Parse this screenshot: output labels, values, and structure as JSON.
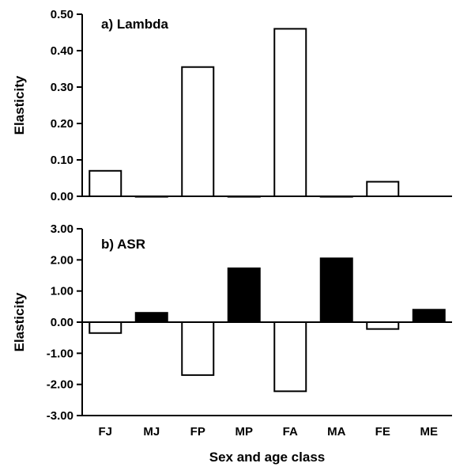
{
  "chart_data": [
    {
      "type": "bar",
      "title": "a) Lambda",
      "ylabel": "Elasticity",
      "xlabel": "",
      "categories": [
        "FJ",
        "MJ",
        "FP",
        "MP",
        "FA",
        "MA",
        "FE",
        "ME"
      ],
      "values": [
        0.07,
        0.0,
        0.355,
        0.0,
        0.46,
        0.0,
        0.04,
        null
      ],
      "ylim": [
        0,
        0.5
      ],
      "yticks": [
        0.0,
        0.1,
        0.2,
        0.3,
        0.4,
        0.5
      ],
      "ytick_labels": [
        "0.00",
        "0.10",
        "0.20",
        "0.30",
        "0.40",
        "0.50"
      ],
      "bar_fills": [
        "#ffffff",
        "#ffffff",
        "#ffffff",
        "#ffffff",
        "#ffffff",
        "#ffffff",
        "#ffffff",
        "#ffffff"
      ],
      "grid": false
    },
    {
      "type": "bar",
      "title": "b) ASR",
      "ylabel": "Elasticity",
      "xlabel": "Sex and age class",
      "categories": [
        "FJ",
        "MJ",
        "FP",
        "MP",
        "FA",
        "MA",
        "FE",
        "ME"
      ],
      "values": [
        -0.35,
        0.3,
        -1.7,
        1.73,
        -2.22,
        2.05,
        -0.22,
        0.4
      ],
      "ylim": [
        -3,
        3
      ],
      "yticks": [
        -3,
        -2,
        -1,
        0,
        1,
        2,
        3
      ],
      "ytick_labels": [
        "-3.00",
        "-2.00",
        "-1.00",
        "0.00",
        "1.00",
        "2.00",
        "3.00"
      ],
      "bar_fills": [
        "#ffffff",
        "#000000",
        "#ffffff",
        "#000000",
        "#ffffff",
        "#000000",
        "#ffffff",
        "#000000"
      ],
      "grid": false
    }
  ]
}
